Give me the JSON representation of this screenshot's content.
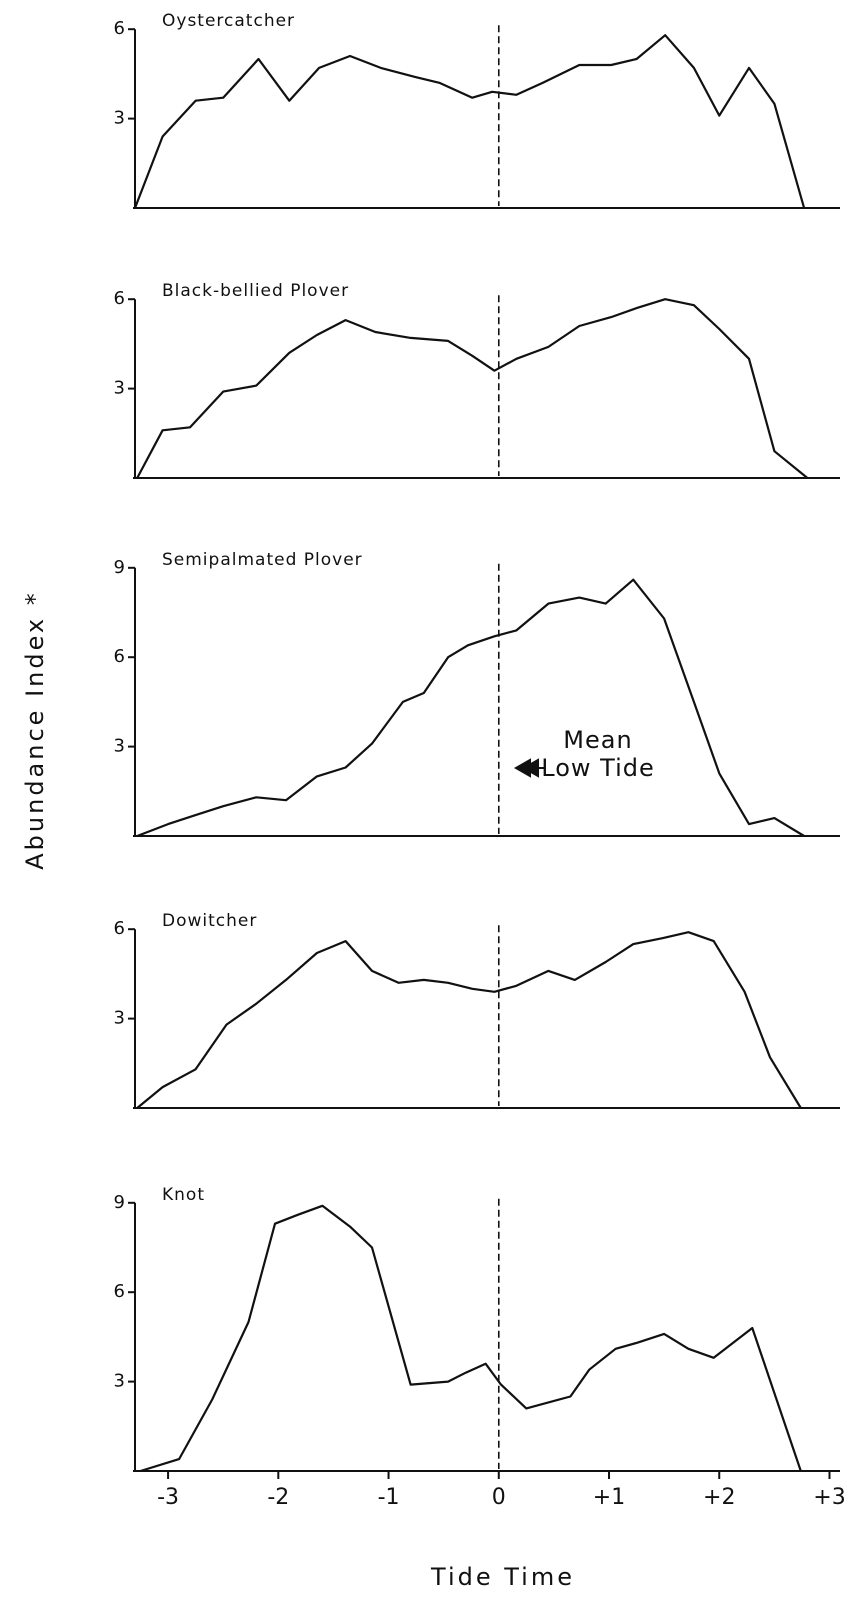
{
  "chart_data": [
    {
      "type": "line",
      "title": "Oystercatcher",
      "x": [
        -3.3,
        -3.05,
        -2.75,
        -2.5,
        -2.18,
        -1.9,
        -1.63,
        -1.35,
        -1.07,
        -0.76,
        -0.54,
        -0.24,
        -0.06,
        0.16,
        0.4,
        0.73,
        1.02,
        1.25,
        1.51,
        1.77,
        2.0,
        2.27,
        2.5,
        2.77
      ],
      "values": [
        0,
        2.4,
        3.6,
        3.7,
        5.0,
        3.6,
        4.7,
        5.1,
        4.7,
        4.4,
        4.2,
        3.7,
        3.9,
        3.8,
        4.2,
        4.8,
        4.8,
        5.0,
        5.8,
        4.7,
        3.1,
        4.7,
        3.5,
        0
      ],
      "xlim": [
        -3.3,
        3.05
      ],
      "ylim": [
        0,
        6
      ],
      "yticks": [
        3,
        6
      ],
      "vline": 0,
      "color": "#111111"
    },
    {
      "type": "line",
      "title": "Black-bellied Plover",
      "x": [
        -3.28,
        -3.05,
        -2.8,
        -2.5,
        -2.2,
        -1.9,
        -1.65,
        -1.39,
        -1.12,
        -0.8,
        -0.46,
        -0.24,
        -0.04,
        0.16,
        0.45,
        0.73,
        1.02,
        1.25,
        1.51,
        1.77,
        2.0,
        2.27,
        2.5,
        2.8
      ],
      "values": [
        0,
        1.6,
        1.7,
        2.9,
        3.1,
        4.2,
        4.8,
        5.3,
        4.9,
        4.7,
        4.6,
        4.1,
        3.6,
        4.0,
        4.4,
        5.1,
        5.4,
        5.7,
        6.0,
        5.8,
        5.0,
        4.0,
        0.9,
        0
      ],
      "xlim": [
        -3.3,
        3.05
      ],
      "ylim": [
        0,
        6
      ],
      "yticks": [
        3,
        6
      ],
      "vline": 0,
      "color": "#111111"
    },
    {
      "type": "line",
      "title": "Semipalmated Plover",
      "ylabel": "Abundance Index *",
      "annotation": [
        "Mean",
        "Low Tide"
      ],
      "x": [
        -3.28,
        -3.0,
        -2.75,
        -2.5,
        -2.2,
        -1.93,
        -1.65,
        -1.39,
        -1.15,
        -0.87,
        -0.68,
        -0.46,
        -0.28,
        -0.04,
        0.16,
        0.45,
        0.73,
        0.97,
        1.22,
        1.5,
        1.77,
        2.0,
        2.27,
        2.5,
        2.77
      ],
      "values": [
        0,
        0.4,
        0.7,
        1.0,
        1.3,
        1.2,
        2.0,
        2.3,
        3.1,
        4.5,
        4.8,
        6.0,
        6.4,
        6.7,
        6.9,
        7.8,
        8.0,
        7.8,
        8.6,
        7.3,
        4.5,
        2.1,
        0.4,
        0.6,
        0
      ],
      "xlim": [
        -3.3,
        3.05
      ],
      "ylim": [
        0,
        9
      ],
      "yticks": [
        3,
        6,
        9
      ],
      "vline": 0,
      "color": "#111111"
    },
    {
      "type": "line",
      "title": "Dowitcher",
      "x": [
        -3.28,
        -3.05,
        -2.75,
        -2.47,
        -2.2,
        -1.93,
        -1.65,
        -1.39,
        -1.15,
        -0.91,
        -0.68,
        -0.46,
        -0.24,
        -0.04,
        0.16,
        0.45,
        0.69,
        0.97,
        1.22,
        1.49,
        1.72,
        1.95,
        2.23,
        2.46,
        2.74
      ],
      "values": [
        0,
        0.7,
        1.3,
        2.8,
        3.5,
        4.3,
        5.2,
        5.6,
        4.6,
        4.2,
        4.3,
        4.2,
        4.0,
        3.9,
        4.1,
        4.6,
        4.3,
        4.9,
        5.5,
        5.7,
        5.9,
        5.6,
        3.9,
        1.7,
        0
      ],
      "xlim": [
        -3.3,
        3.05
      ],
      "ylim": [
        0,
        6
      ],
      "yticks": [
        3,
        6
      ],
      "vline": 0,
      "color": "#111111"
    },
    {
      "type": "line",
      "title": "Knot",
      "xlabel": "Tide Time",
      "x": [
        -3.25,
        -2.9,
        -2.6,
        -2.27,
        -2.03,
        -1.82,
        -1.6,
        -1.35,
        -1.15,
        -0.8,
        -0.46,
        -0.3,
        -0.12,
        0.02,
        0.25,
        0.65,
        0.82,
        1.06,
        1.25,
        1.5,
        1.72,
        1.95,
        2.3,
        2.74
      ],
      "values": [
        0,
        0.4,
        2.4,
        5.0,
        8.3,
        8.6,
        8.9,
        8.2,
        7.5,
        2.9,
        3.0,
        3.3,
        3.6,
        2.9,
        2.1,
        2.5,
        3.4,
        4.1,
        4.3,
        4.6,
        4.1,
        3.8,
        4.8,
        0
      ],
      "xlim": [
        -3.3,
        3.05
      ],
      "ylim": [
        0,
        9
      ],
      "yticks": [
        3,
        6,
        9
      ],
      "vline": 0,
      "color": "#111111",
      "xticks": [
        -3,
        -2,
        -1,
        0,
        {
          "value": 1,
          "label": "+1"
        },
        {
          "value": 2,
          "label": "+2"
        },
        {
          "value": 3,
          "label": "+3"
        }
      ]
    }
  ]
}
